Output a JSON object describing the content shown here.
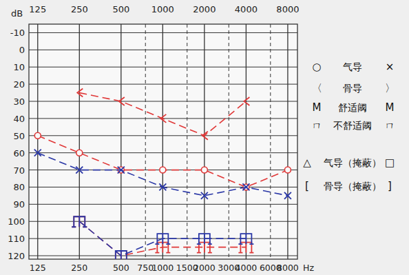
{
  "chart_data": {
    "type": "line",
    "x_label": "Hz",
    "y_label": "dB",
    "log": "x",
    "grid": true,
    "xlim": [
      108,
      9400
    ],
    "ylim": [
      -15,
      122
    ],
    "xticks": [
      125,
      250,
      500,
      750,
      1000,
      1500,
      2000,
      3000,
      4000,
      6000,
      8000
    ],
    "yticks": [
      -10,
      0,
      10,
      20,
      30,
      40,
      50,
      60,
      70,
      80,
      90,
      100,
      110,
      120
    ],
    "x": [
      125,
      250,
      500,
      1000,
      2000,
      4000,
      8000
    ],
    "series": [
      {
        "color": "#e03838",
        "marker": "circle",
        "line_style": "dashed",
        "values": [
          50,
          60,
          70,
          70,
          70,
          80,
          70
        ]
      },
      {
        "color": "#2a37a6",
        "marker": "x",
        "line_style": "dashed",
        "values": [
          60,
          70,
          70,
          80,
          85,
          80,
          85
        ]
      },
      {
        "color": "#e03838",
        "marker": "<",
        "line_style": "dashed",
        "values": [
          null,
          25,
          30,
          40,
          50,
          30,
          null
        ]
      },
      {
        "color": "#e03838",
        "marker": "ucl",
        "line_style": "dashed",
        "values": [
          null,
          100,
          120,
          115,
          115,
          115,
          null
        ]
      },
      {
        "color": "#2a37a6",
        "marker": "ucl",
        "line_style": "dashed",
        "values": [
          null,
          100,
          120,
          110,
          110,
          110,
          null
        ]
      }
    ],
    "legend_rows": [
      {
        "left": "○",
        "label": "气导",
        "right": "×"
      },
      {
        "left": "〈",
        "label": "骨导",
        "right": "〉"
      },
      {
        "left": "M",
        "label": "舒适阈",
        "right": "M"
      },
      {
        "left": "ㄇ",
        "label": "不舒适阈",
        "right": "ㄇ"
      },
      {
        "left": "△",
        "label": "气导（掩蔽）",
        "right": "□"
      },
      {
        "left": "[",
        "label": "骨导（掩蔽）",
        "right": "]"
      }
    ]
  }
}
